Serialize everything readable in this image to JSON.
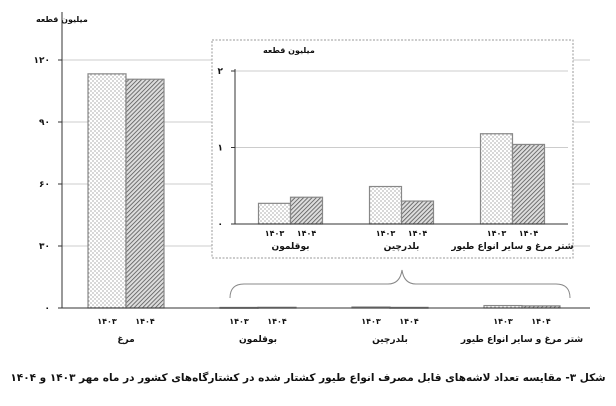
{
  "chart_data": [
    {
      "type": "bar",
      "ylabel": "میلیون قطعه",
      "ylim": [
        0,
        120
      ],
      "yticks": [
        "۰",
        "۳۰",
        "۶۰",
        "۹۰",
        "۱۲۰"
      ],
      "ytick_values": [
        0,
        30,
        60,
        90,
        120
      ],
      "grid": true,
      "categories": [
        "مرغ",
        "بوقلمون",
        "بلدرچین",
        "شتر مرغ و سایر انواع طیور"
      ],
      "series": [
        {
          "name": "۱۴۰۳",
          "pattern": "dotted",
          "values": [
            113.3,
            0.27,
            0.49,
            1.18
          ]
        },
        {
          "name": "۱۴۰۴",
          "pattern": "hatched",
          "values": [
            110.7,
            0.35,
            0.3,
            1.04
          ]
        }
      ]
    },
    {
      "type": "bar",
      "inset": true,
      "ylabel": "میلیون قطعه",
      "ylim": [
        0,
        2
      ],
      "yticks": [
        "۰",
        "۱",
        "۲"
      ],
      "ytick_values": [
        0,
        1,
        2
      ],
      "grid": true,
      "categories": [
        "بوقلمون",
        "بلدرچین",
        "شتر مرغ و سایر انواع طیور"
      ],
      "series": [
        {
          "name": "۱۴۰۳",
          "pattern": "dotted",
          "values": [
            0.27,
            0.49,
            1.18
          ]
        },
        {
          "name": "۱۴۰۴",
          "pattern": "hatched",
          "values": [
            0.35,
            0.3,
            1.04
          ]
        }
      ]
    }
  ],
  "caption": "شکل ۳- مقایسه تعداد لاشه‌های قابل مصرف انواع طیور کشتار شده در کشتارگاه‌های کشور در ماه مهر ۱۴۰۳ و ۱۴۰۴",
  "colors": {
    "bar_outline": "#888888",
    "grid": "#cccccc",
    "hatch": "#555555",
    "dots": "#777777"
  }
}
